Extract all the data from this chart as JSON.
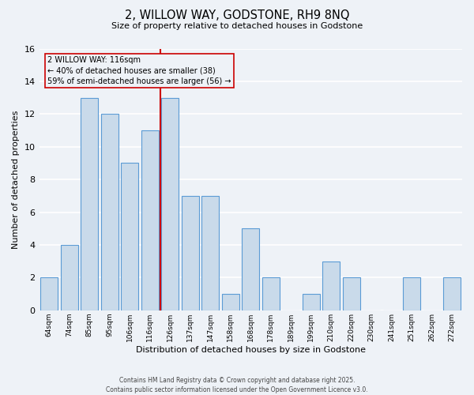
{
  "title_line1": "2, WILLOW WAY, GODSTONE, RH9 8NQ",
  "title_line2": "Size of property relative to detached houses in Godstone",
  "xlabel": "Distribution of detached houses by size in Godstone",
  "ylabel": "Number of detached properties",
  "bin_labels": [
    "64sqm",
    "74sqm",
    "85sqm",
    "95sqm",
    "106sqm",
    "116sqm",
    "126sqm",
    "137sqm",
    "147sqm",
    "158sqm",
    "168sqm",
    "178sqm",
    "189sqm",
    "199sqm",
    "210sqm",
    "220sqm",
    "230sqm",
    "241sqm",
    "251sqm",
    "262sqm",
    "272sqm"
  ],
  "counts": [
    2,
    4,
    13,
    12,
    9,
    11,
    13,
    7,
    7,
    1,
    5,
    2,
    0,
    1,
    3,
    2,
    0,
    0,
    2,
    0,
    2
  ],
  "bar_color": "#c9daea",
  "bar_edge_color": "#5b9bd5",
  "property_bin_index": 5,
  "vline_color": "#cc0000",
  "annotation_text": "2 WILLOW WAY: 116sqm\n← 40% of detached houses are smaller (38)\n59% of semi-detached houses are larger (56) →",
  "annotation_box_edge_color": "#cc0000",
  "ylim": [
    0,
    16
  ],
  "yticks": [
    0,
    2,
    4,
    6,
    8,
    10,
    12,
    14,
    16
  ],
  "background_color": "#eef2f7",
  "grid_color": "#ffffff",
  "footer_line1": "Contains HM Land Registry data © Crown copyright and database right 2025.",
  "footer_line2": "Contains public sector information licensed under the Open Government Licence v3.0."
}
